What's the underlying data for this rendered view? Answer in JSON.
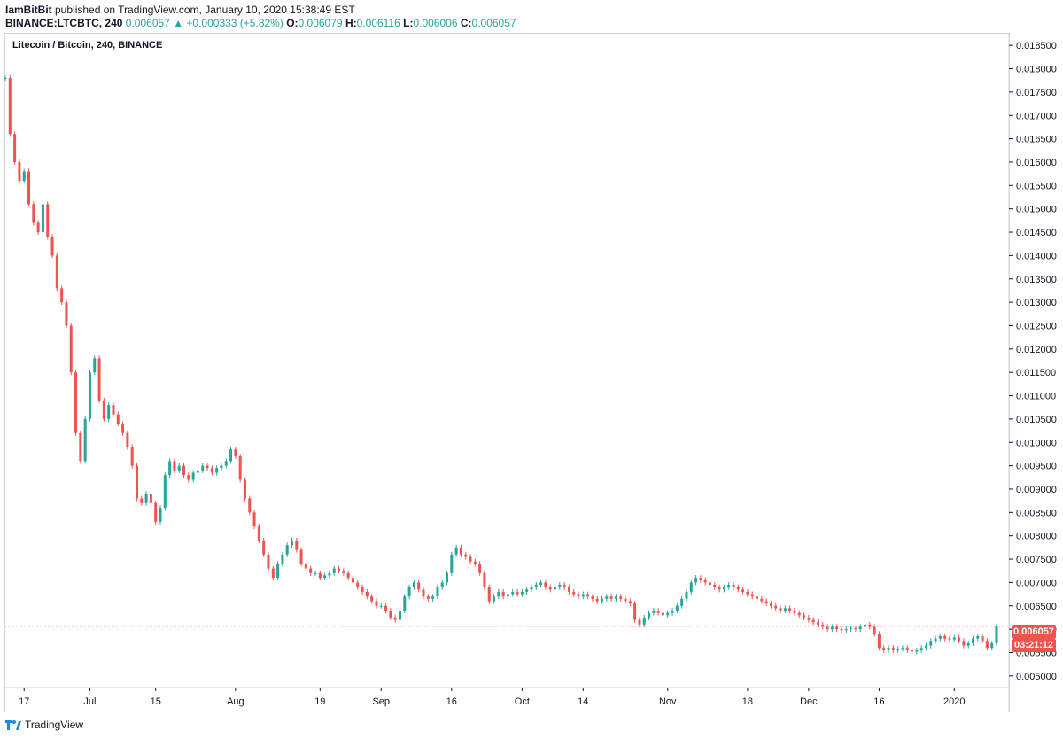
{
  "publish": {
    "user": "IamBitBit",
    "text": " published on TradingView.com, January 10, 2020 15:38:49 EST"
  },
  "ohlc": {
    "symbol": "BINANCE:LTCBTC, 240",
    "price": "0.006057",
    "change": "▲ +0.000333 (+5.82%)",
    "o_label": "O:",
    "o": "0.006079",
    "h_label": "H:",
    "h": "0.006116",
    "l_label": "L:",
    "l": "0.006006",
    "c_label": "C:",
    "c": "0.006057"
  },
  "legend": "Litecoin / Bitcoin, 240, BINANCE",
  "badges": {
    "last_price": "0.006057",
    "timer": "03:21:12"
  },
  "footer": {
    "brand": "TradingView"
  },
  "colors": {
    "up": "#26a69a",
    "down": "#ef5350",
    "axis": "#131722",
    "border": "#d1d4dc"
  },
  "chart_data": {
    "type": "candlestick",
    "title": "Litecoin / Bitcoin, 240, BINANCE",
    "ylim": [
      0.00475,
      0.01875
    ],
    "yticks": [
      "0.018500",
      "0.018000",
      "0.017500",
      "0.017000",
      "0.016500",
      "0.016000",
      "0.015500",
      "0.015000",
      "0.014500",
      "0.014000",
      "0.013500",
      "0.013000",
      "0.012500",
      "0.012000",
      "0.011500",
      "0.011000",
      "0.010500",
      "0.010000",
      "0.009500",
      "0.009000",
      "0.008500",
      "0.008000",
      "0.007500",
      "0.007000",
      "0.006500",
      "0.006000",
      "0.005500",
      "0.005000"
    ],
    "xticks": [
      "17",
      "Jul",
      "15",
      "Aug",
      "19",
      "Sep",
      "16",
      "Oct",
      "14",
      "Nov",
      "18",
      "Dec",
      "16",
      "2020"
    ],
    "xlim": [
      "2019-06-13",
      "2020-01-10"
    ],
    "xtick_dates": [
      "2019-06-17",
      "2019-07-01",
      "2019-07-15",
      "2019-08-01",
      "2019-08-19",
      "2019-09-01",
      "2019-09-16",
      "2019-10-01",
      "2019-10-14",
      "2019-11-01",
      "2019-11-18",
      "2019-12-01",
      "2019-12-16",
      "2020-01-01"
    ],
    "series": [
      {
        "name": "LTCBTC",
        "points": [
          [
            "2019-06-13",
            0.0178
          ],
          [
            "2019-06-14",
            0.0166
          ],
          [
            "2019-06-15",
            0.016
          ],
          [
            "2019-06-16",
            0.0156
          ],
          [
            "2019-06-17",
            0.0158
          ],
          [
            "2019-06-18",
            0.0151
          ],
          [
            "2019-06-19",
            0.0147
          ],
          [
            "2019-06-20",
            0.0145
          ],
          [
            "2019-06-21",
            0.0151
          ],
          [
            "2019-06-22",
            0.0144
          ],
          [
            "2019-06-23",
            0.014
          ],
          [
            "2019-06-24",
            0.0133
          ],
          [
            "2019-06-25",
            0.013
          ],
          [
            "2019-06-26",
            0.0125
          ],
          [
            "2019-06-27",
            0.0115
          ],
          [
            "2019-06-28",
            0.0102
          ],
          [
            "2019-06-29",
            0.0096
          ],
          [
            "2019-06-30",
            0.0105
          ],
          [
            "2019-07-01",
            0.0115
          ],
          [
            "2019-07-02",
            0.0118
          ],
          [
            "2019-07-03",
            0.0109
          ],
          [
            "2019-07-04",
            0.0105
          ],
          [
            "2019-07-05",
            0.0108
          ],
          [
            "2019-07-06",
            0.0106
          ],
          [
            "2019-07-07",
            0.0104
          ],
          [
            "2019-07-08",
            0.0102
          ],
          [
            "2019-07-09",
            0.0099
          ],
          [
            "2019-07-10",
            0.0095
          ],
          [
            "2019-07-11",
            0.0088
          ],
          [
            "2019-07-12",
            0.0087
          ],
          [
            "2019-07-13",
            0.0089
          ],
          [
            "2019-07-14",
            0.0087
          ],
          [
            "2019-07-15",
            0.0083
          ],
          [
            "2019-07-16",
            0.0086
          ],
          [
            "2019-07-17",
            0.0093
          ],
          [
            "2019-07-18",
            0.0096
          ],
          [
            "2019-07-19",
            0.0094
          ],
          [
            "2019-07-20",
            0.0095
          ],
          [
            "2019-07-21",
            0.0093
          ],
          [
            "2019-07-22",
            0.0092
          ],
          [
            "2019-07-23",
            0.00935
          ],
          [
            "2019-07-24",
            0.0094
          ],
          [
            "2019-07-25",
            0.0095
          ],
          [
            "2019-07-26",
            0.00945
          ],
          [
            "2019-07-27",
            0.00935
          ],
          [
            "2019-07-28",
            0.00945
          ],
          [
            "2019-07-29",
            0.0095
          ],
          [
            "2019-07-30",
            0.0096
          ],
          [
            "2019-07-31",
            0.00985
          ],
          [
            "2019-08-01",
            0.0097
          ],
          [
            "2019-08-02",
            0.0092
          ],
          [
            "2019-08-03",
            0.0088
          ],
          [
            "2019-08-04",
            0.0085
          ],
          [
            "2019-08-05",
            0.0082
          ],
          [
            "2019-08-06",
            0.0079
          ],
          [
            "2019-08-07",
            0.0076
          ],
          [
            "2019-08-08",
            0.0073
          ],
          [
            "2019-08-09",
            0.0071
          ],
          [
            "2019-08-10",
            0.0074
          ],
          [
            "2019-08-11",
            0.0076
          ],
          [
            "2019-08-12",
            0.0078
          ],
          [
            "2019-08-13",
            0.0079
          ],
          [
            "2019-08-14",
            0.0077
          ],
          [
            "2019-08-15",
            0.0074
          ],
          [
            "2019-08-16",
            0.0073
          ],
          [
            "2019-08-17",
            0.0072
          ],
          [
            "2019-08-18",
            0.0072
          ],
          [
            "2019-08-19",
            0.0071
          ],
          [
            "2019-08-20",
            0.00715
          ],
          [
            "2019-08-21",
            0.0072
          ],
          [
            "2019-08-22",
            0.0073
          ],
          [
            "2019-08-23",
            0.00725
          ],
          [
            "2019-08-24",
            0.0072
          ],
          [
            "2019-08-25",
            0.0071
          ],
          [
            "2019-08-26",
            0.007
          ],
          [
            "2019-08-27",
            0.0069
          ],
          [
            "2019-08-28",
            0.0068
          ],
          [
            "2019-08-29",
            0.0067
          ],
          [
            "2019-08-30",
            0.0066
          ],
          [
            "2019-08-31",
            0.0065
          ],
          [
            "2019-09-01",
            0.0065
          ],
          [
            "2019-09-02",
            0.0064
          ],
          [
            "2019-09-03",
            0.00625
          ],
          [
            "2019-09-04",
            0.0062
          ],
          [
            "2019-09-05",
            0.0064
          ],
          [
            "2019-09-06",
            0.0067
          ],
          [
            "2019-09-07",
            0.0069
          ],
          [
            "2019-09-08",
            0.007
          ],
          [
            "2019-09-09",
            0.00685
          ],
          [
            "2019-09-10",
            0.0067
          ],
          [
            "2019-09-11",
            0.00665
          ],
          [
            "2019-09-12",
            0.0067
          ],
          [
            "2019-09-13",
            0.0069
          ],
          [
            "2019-09-14",
            0.007
          ],
          [
            "2019-09-15",
            0.0072
          ],
          [
            "2019-09-16",
            0.0076
          ],
          [
            "2019-09-17",
            0.00775
          ],
          [
            "2019-09-18",
            0.0076
          ],
          [
            "2019-09-19",
            0.00755
          ],
          [
            "2019-09-20",
            0.00745
          ],
          [
            "2019-09-21",
            0.0074
          ],
          [
            "2019-09-22",
            0.0072
          ],
          [
            "2019-09-23",
            0.0069
          ],
          [
            "2019-09-24",
            0.0066
          ],
          [
            "2019-09-25",
            0.0067
          ],
          [
            "2019-09-26",
            0.0068
          ],
          [
            "2019-09-27",
            0.0067
          ],
          [
            "2019-09-28",
            0.00675
          ],
          [
            "2019-09-29",
            0.0068
          ],
          [
            "2019-09-30",
            0.00675
          ],
          [
            "2019-10-01",
            0.0068
          ],
          [
            "2019-10-02",
            0.00685
          ],
          [
            "2019-10-03",
            0.0069
          ],
          [
            "2019-10-04",
            0.00695
          ],
          [
            "2019-10-05",
            0.007
          ],
          [
            "2019-10-06",
            0.0069
          ],
          [
            "2019-10-07",
            0.00685
          ],
          [
            "2019-10-08",
            0.0069
          ],
          [
            "2019-10-09",
            0.00695
          ],
          [
            "2019-10-10",
            0.0069
          ],
          [
            "2019-10-11",
            0.0068
          ],
          [
            "2019-10-12",
            0.00675
          ],
          [
            "2019-10-13",
            0.0067
          ],
          [
            "2019-10-14",
            0.00675
          ],
          [
            "2019-10-15",
            0.0067
          ],
          [
            "2019-10-16",
            0.00665
          ],
          [
            "2019-10-17",
            0.0066
          ],
          [
            "2019-10-18",
            0.00665
          ],
          [
            "2019-10-19",
            0.0067
          ],
          [
            "2019-10-20",
            0.00665
          ],
          [
            "2019-10-21",
            0.0067
          ],
          [
            "2019-10-22",
            0.00665
          ],
          [
            "2019-10-23",
            0.0066
          ],
          [
            "2019-10-24",
            0.00655
          ],
          [
            "2019-10-25",
            0.0062
          ],
          [
            "2019-10-26",
            0.0061
          ],
          [
            "2019-10-27",
            0.00625
          ],
          [
            "2019-10-28",
            0.00635
          ],
          [
            "2019-10-29",
            0.0064
          ],
          [
            "2019-10-30",
            0.00635
          ],
          [
            "2019-10-31",
            0.0063
          ],
          [
            "2019-11-01",
            0.00635
          ],
          [
            "2019-11-02",
            0.0064
          ],
          [
            "2019-11-03",
            0.0065
          ],
          [
            "2019-11-04",
            0.00665
          ],
          [
            "2019-11-05",
            0.0068
          ],
          [
            "2019-11-06",
            0.007
          ],
          [
            "2019-11-07",
            0.0071
          ],
          [
            "2019-11-08",
            0.00705
          ],
          [
            "2019-11-09",
            0.007
          ],
          [
            "2019-11-10",
            0.00695
          ],
          [
            "2019-11-11",
            0.0069
          ],
          [
            "2019-11-12",
            0.00685
          ],
          [
            "2019-11-13",
            0.0069
          ],
          [
            "2019-11-14",
            0.00695
          ],
          [
            "2019-11-15",
            0.0069
          ],
          [
            "2019-11-16",
            0.00685
          ],
          [
            "2019-11-17",
            0.0068
          ],
          [
            "2019-11-18",
            0.00675
          ],
          [
            "2019-11-19",
            0.0067
          ],
          [
            "2019-11-20",
            0.00665
          ],
          [
            "2019-11-21",
            0.0066
          ],
          [
            "2019-11-22",
            0.00655
          ],
          [
            "2019-11-23",
            0.0065
          ],
          [
            "2019-11-24",
            0.00645
          ],
          [
            "2019-11-25",
            0.0064
          ],
          [
            "2019-11-26",
            0.00645
          ],
          [
            "2019-11-27",
            0.0064
          ],
          [
            "2019-11-28",
            0.00635
          ],
          [
            "2019-11-29",
            0.0063
          ],
          [
            "2019-11-30",
            0.00625
          ],
          [
            "2019-12-01",
            0.0062
          ],
          [
            "2019-12-02",
            0.00615
          ],
          [
            "2019-12-03",
            0.0061
          ],
          [
            "2019-12-04",
            0.00605
          ],
          [
            "2019-12-05",
            0.006
          ],
          [
            "2019-12-06",
            0.00605
          ],
          [
            "2019-12-07",
            0.006
          ],
          [
            "2019-12-08",
            0.00598
          ],
          [
            "2019-12-09",
            0.006
          ],
          [
            "2019-12-10",
            0.00602
          ],
          [
            "2019-12-11",
            0.006
          ],
          [
            "2019-12-12",
            0.00605
          ],
          [
            "2019-12-13",
            0.0061
          ],
          [
            "2019-12-14",
            0.00605
          ],
          [
            "2019-12-15",
            0.0059
          ],
          [
            "2019-12-16",
            0.0056
          ],
          [
            "2019-12-17",
            0.00555
          ],
          [
            "2019-12-18",
            0.0056
          ],
          [
            "2019-12-19",
            0.00555
          ],
          [
            "2019-12-20",
            0.00558
          ],
          [
            "2019-12-21",
            0.0056
          ],
          [
            "2019-12-22",
            0.00555
          ],
          [
            "2019-12-23",
            0.00552
          ],
          [
            "2019-12-24",
            0.00555
          ],
          [
            "2019-12-25",
            0.0056
          ],
          [
            "2019-12-26",
            0.00565
          ],
          [
            "2019-12-27",
            0.00575
          ],
          [
            "2019-12-28",
            0.0058
          ],
          [
            "2019-12-29",
            0.00585
          ],
          [
            "2019-12-30",
            0.0058
          ],
          [
            "2019-12-31",
            0.00578
          ],
          [
            "2020-01-01",
            0.00582
          ],
          [
            "2020-01-02",
            0.00575
          ],
          [
            "2020-01-03",
            0.00565
          ],
          [
            "2020-01-04",
            0.0057
          ],
          [
            "2020-01-05",
            0.0058
          ],
          [
            "2020-01-06",
            0.00585
          ],
          [
            "2020-01-07",
            0.00575
          ],
          [
            "2020-01-08",
            0.0056
          ],
          [
            "2020-01-09",
            0.0057
          ],
          [
            "2020-01-10",
            0.006057
          ]
        ]
      }
    ]
  }
}
